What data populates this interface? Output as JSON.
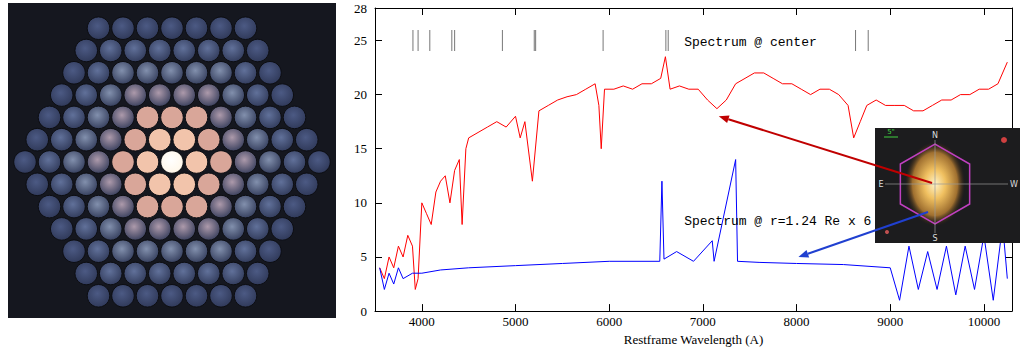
{
  "chart_data": {
    "type": "line",
    "xlabel": "Restframe Wavelength (A)",
    "xlim": [
      3500,
      10300
    ],
    "xticks": [
      4000,
      5000,
      6000,
      7000,
      8000,
      9000,
      10000
    ],
    "ylim": [
      0,
      28
    ],
    "yticks": [
      0,
      5,
      10,
      15,
      20,
      25
    ],
    "grid": false,
    "series": [
      {
        "color": "#ff0000",
        "x": [
          3550,
          3600,
          3650,
          3700,
          3750,
          3800,
          3850,
          3900,
          3930,
          3960,
          4000,
          4050,
          4100,
          4150,
          4200,
          4250,
          4300,
          4350,
          4400,
          4430,
          4470,
          4500,
          4600,
          4700,
          4800,
          4900,
          5000,
          5050,
          5100,
          5180,
          5250,
          5350,
          5450,
          5550,
          5650,
          5750,
          5850,
          5890,
          5915,
          5950,
          6050,
          6150,
          6250,
          6350,
          6450,
          6550,
          6600,
          6650,
          6750,
          6850,
          6950,
          7050,
          7150,
          7250,
          7350,
          7450,
          7550,
          7650,
          7750,
          7850,
          7950,
          8050,
          8150,
          8250,
          8350,
          8450,
          8550,
          8610,
          8680,
          8750,
          8850,
          8950,
          9050,
          9150,
          9250,
          9350,
          9450,
          9550,
          9650,
          9750,
          9850,
          9950,
          10050,
          10150,
          10250
        ],
        "values": [
          4,
          3,
          5,
          4,
          6,
          5,
          7,
          6,
          2,
          3,
          10,
          9,
          8,
          11,
          12,
          12.5,
          10,
          13,
          14,
          8,
          15,
          16,
          16.5,
          17,
          17.5,
          17,
          18,
          16,
          17.5,
          12,
          18.5,
          19,
          19.5,
          19.8,
          20,
          20.5,
          21,
          19,
          15,
          20.5,
          20.5,
          20.8,
          20.5,
          21,
          21,
          21.5,
          23.5,
          20.5,
          20.8,
          20.5,
          20.5,
          19.5,
          18.7,
          19.5,
          21,
          21.5,
          22,
          22,
          21.5,
          21,
          21,
          20.5,
          20,
          20.5,
          20.5,
          20,
          19,
          16,
          17.5,
          19,
          19.5,
          19,
          19,
          19,
          18.5,
          18.5,
          19,
          19.5,
          19.5,
          20,
          20,
          20.5,
          20.5,
          21,
          23
        ]
      },
      {
        "color": "#0000ff",
        "x": [
          3550,
          3600,
          3650,
          3700,
          3750,
          3800,
          3900,
          4000,
          4200,
          4500,
          5000,
          5500,
          6000,
          6540,
          6563,
          6585,
          6720,
          6900,
          7100,
          7120,
          7350,
          7370,
          7600,
          8000,
          8500,
          9000,
          9100,
          9200,
          9300,
          9400,
          9500,
          9600,
          9700,
          9800,
          9900,
          10000,
          10100,
          10200,
          10250
        ],
        "values": [
          4,
          2,
          3.5,
          2.5,
          4,
          3,
          3.5,
          3.5,
          3.8,
          4,
          4.2,
          4.4,
          4.6,
          4.6,
          12,
          4.8,
          5.5,
          4.6,
          6.5,
          4.6,
          14,
          4.6,
          4.5,
          4.4,
          4.3,
          4,
          1,
          6,
          2,
          5.5,
          2,
          6,
          1.5,
          6,
          2,
          7,
          1,
          8,
          3
        ]
      }
    ],
    "annotations": [
      {
        "text": "Spectrum @ center",
        "x": 6800,
        "y": 24.8,
        "arrow_to": [
          7170,
          18.0
        ],
        "color": "#c00000"
      },
      {
        "text": "Spectrum @ r=1.24 Re x 6",
        "x": 6800,
        "y": 8.3,
        "arrow_to": [
          8020,
          5.0
        ],
        "color": "#2040d0"
      }
    ],
    "line_marks": [
      3905,
      3960,
      4085,
      4320,
      4350,
      4860,
      5200,
      5215,
      5935,
      6605,
      6630,
      8630,
      8765
    ]
  },
  "inset_image": {
    "compass": [
      "N",
      "S",
      "E",
      "W"
    ],
    "scale_bar": "5\""
  }
}
